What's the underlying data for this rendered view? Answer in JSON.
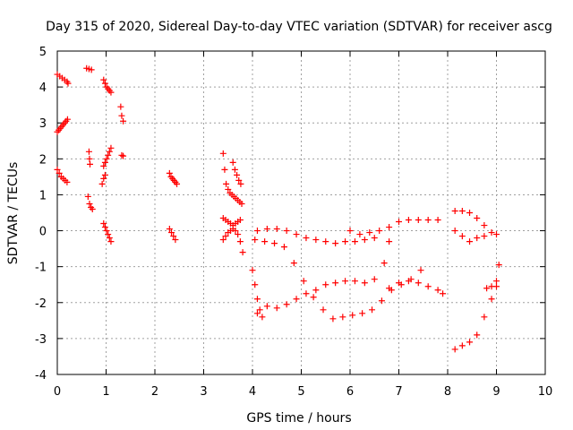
{
  "chart_data": {
    "type": "scatter",
    "title": "Day 315 of 2020, Sidereal Day-to-day VTEC variation (SDTVAR) for receiver ascg",
    "xlabel": "GPS time / hours",
    "ylabel": "SDTVAR / TECUs",
    "xlim": [
      0,
      10
    ],
    "ylim": [
      -4,
      5
    ],
    "x_ticks": [
      0,
      1,
      2,
      3,
      4,
      5,
      6,
      7,
      8,
      9,
      10
    ],
    "y_ticks": [
      -4,
      -3,
      -2,
      -1,
      0,
      1,
      2,
      3,
      4,
      5
    ],
    "x_tick_labels": [
      "0",
      "1",
      "2",
      "3",
      "4",
      "5",
      "6",
      "7",
      "8",
      "9",
      "10"
    ],
    "y_tick_labels": [
      "-4",
      "-3",
      "-2",
      "-1",
      "0",
      "1",
      "2",
      "3",
      "4",
      "5"
    ],
    "grid": true,
    "marker": "plus",
    "color": "#ff0000",
    "series": [
      {
        "x": [
          0.0,
          0.05,
          0.1,
          0.15,
          0.2,
          0.22
        ],
        "y": [
          4.35,
          4.3,
          4.25,
          4.2,
          4.15,
          4.1
        ]
      },
      {
        "x": [
          0.0,
          0.03,
          0.06,
          0.09,
          0.12,
          0.15,
          0.18,
          0.21
        ],
        "y": [
          2.75,
          2.8,
          2.85,
          2.9,
          2.95,
          3.0,
          3.05,
          3.1
        ]
      },
      {
        "x": [
          0.0,
          0.04,
          0.08,
          0.12,
          0.16,
          0.2
        ],
        "y": [
          1.7,
          1.6,
          1.5,
          1.45,
          1.4,
          1.35
        ]
      },
      {
        "x": [
          0.6,
          0.65,
          0.7
        ],
        "y": [
          4.52,
          4.5,
          4.48
        ]
      },
      {
        "x": [
          0.65,
          0.66,
          0.67
        ],
        "y": [
          2.2,
          2.0,
          1.85
        ]
      },
      {
        "x": [
          0.63,
          0.66,
          0.69,
          0.72
        ],
        "y": [
          0.95,
          0.75,
          0.65,
          0.6
        ]
      },
      {
        "x": [
          0.95,
          0.98,
          1.01,
          1.04,
          1.07,
          1.1
        ],
        "y": [
          4.2,
          4.1,
          4.0,
          3.95,
          3.9,
          3.85
        ]
      },
      {
        "x": [
          0.95,
          0.98,
          1.01,
          1.04,
          1.07,
          1.1
        ],
        "y": [
          1.8,
          1.9,
          2.0,
          2.1,
          2.2,
          2.3
        ]
      },
      {
        "x": [
          0.92,
          0.95,
          0.98
        ],
        "y": [
          1.3,
          1.45,
          1.55
        ]
      },
      {
        "x": [
          0.95,
          0.98,
          1.01,
          1.04,
          1.07,
          1.1
        ],
        "y": [
          0.2,
          0.1,
          0.0,
          -0.1,
          -0.2,
          -0.3
        ]
      },
      {
        "x": [
          1.3,
          1.32,
          1.35
        ],
        "y": [
          3.45,
          3.2,
          3.05
        ]
      },
      {
        "x": [
          1.32,
          1.35
        ],
        "y": [
          2.1,
          2.08
        ]
      },
      {
        "x": [
          2.3,
          2.33,
          2.36,
          2.39,
          2.42,
          2.45
        ],
        "y": [
          1.6,
          1.5,
          1.45,
          1.4,
          1.35,
          1.3
        ]
      },
      {
        "x": [
          2.3,
          2.34,
          2.38,
          2.42
        ],
        "y": [
          0.05,
          -0.05,
          -0.15,
          -0.25
        ]
      },
      {
        "x": [
          3.4,
          3.43,
          3.46,
          3.5,
          3.54,
          3.58,
          3.62,
          3.66,
          3.7,
          3.74,
          3.78
        ],
        "y": [
          2.15,
          1.7,
          1.3,
          1.15,
          1.05,
          1.0,
          0.95,
          0.9,
          0.85,
          0.8,
          0.75
        ]
      },
      {
        "x": [
          3.4,
          3.45,
          3.5,
          3.55,
          3.6,
          3.65,
          3.7,
          3.75
        ],
        "y": [
          0.35,
          0.3,
          0.25,
          0.2,
          0.15,
          0.2,
          0.25,
          0.3
        ]
      },
      {
        "x": [
          3.4,
          3.45,
          3.5,
          3.55,
          3.6,
          3.65,
          3.7,
          3.75,
          3.8
        ],
        "y": [
          -0.25,
          -0.15,
          -0.05,
          0.0,
          0.05,
          0.0,
          -0.1,
          -0.3,
          -0.6
        ]
      },
      {
        "x": [
          3.6,
          3.64,
          3.68,
          3.72,
          3.76
        ],
        "y": [
          1.9,
          1.7,
          1.55,
          1.4,
          1.3
        ]
      },
      {
        "x": [
          4.0,
          4.05,
          4.1,
          4.15,
          4.2
        ],
        "y": [
          -1.1,
          -1.5,
          -1.9,
          -2.2,
          -2.4
        ]
      },
      {
        "x": [
          4.1,
          4.3,
          4.5,
          4.7,
          4.9,
          5.1,
          5.3,
          5.5,
          5.7,
          5.9,
          6.1,
          6.3,
          6.5,
          6.7,
          6.8
        ],
        "y": [
          -2.3,
          -2.1,
          -2.15,
          -2.05,
          -1.9,
          -1.75,
          -1.65,
          -1.5,
          -1.45,
          -1.4,
          -1.4,
          -1.45,
          -1.35,
          -0.9,
          -0.3
        ]
      },
      {
        "x": [
          4.05,
          4.25,
          4.45,
          4.65,
          4.85,
          5.05,
          5.25,
          5.45,
          5.65,
          5.85,
          6.05,
          6.25,
          6.45,
          6.65,
          6.85,
          7.05,
          7.25,
          7.45
        ],
        "y": [
          -0.25,
          -0.3,
          -0.35,
          -0.45,
          -0.9,
          -1.4,
          -1.85,
          -2.2,
          -2.45,
          -2.4,
          -2.35,
          -2.3,
          -2.2,
          -1.95,
          -1.65,
          -1.5,
          -1.35,
          -1.1
        ]
      },
      {
        "x": [
          4.1,
          4.3,
          4.5,
          4.7,
          4.9,
          5.1,
          5.3,
          5.5,
          5.7,
          5.9,
          6.1,
          6.3,
          6.5
        ],
        "y": [
          0.0,
          0.05,
          0.05,
          0.0,
          -0.1,
          -0.2,
          -0.25,
          -0.3,
          -0.35,
          -0.3,
          -0.3,
          -0.25,
          -0.2
        ]
      },
      {
        "x": [
          6.0,
          6.2,
          6.4,
          6.6,
          6.8,
          7.0,
          7.2,
          7.4,
          7.6,
          7.8
        ],
        "y": [
          0.0,
          -0.1,
          -0.05,
          0.0,
          0.1,
          0.25,
          0.3,
          0.3,
          0.3,
          0.3
        ]
      },
      {
        "x": [
          6.8,
          7.0,
          7.2,
          7.4,
          7.6,
          7.8,
          7.9
        ],
        "y": [
          -1.6,
          -1.45,
          -1.4,
          -1.45,
          -1.55,
          -1.65,
          -1.75
        ]
      },
      {
        "x": [
          8.15,
          8.3,
          8.45,
          8.6,
          8.75,
          8.9,
          9.0
        ],
        "y": [
          0.55,
          0.55,
          0.5,
          0.35,
          0.15,
          -0.05,
          -0.1
        ]
      },
      {
        "x": [
          8.15,
          8.3,
          8.45,
          8.6,
          8.75
        ],
        "y": [
          0.0,
          -0.15,
          -0.3,
          -0.2,
          -0.15
        ]
      },
      {
        "x": [
          8.15,
          8.3,
          8.45,
          8.6,
          8.75,
          8.9,
          9.0,
          9.05
        ],
        "y": [
          -3.3,
          -3.2,
          -3.1,
          -2.9,
          -2.4,
          -1.9,
          -1.4,
          -0.95
        ]
      },
      {
        "x": [
          8.8,
          8.9,
          9.0
        ],
        "y": [
          -1.6,
          -1.55,
          -1.55
        ]
      }
    ]
  }
}
